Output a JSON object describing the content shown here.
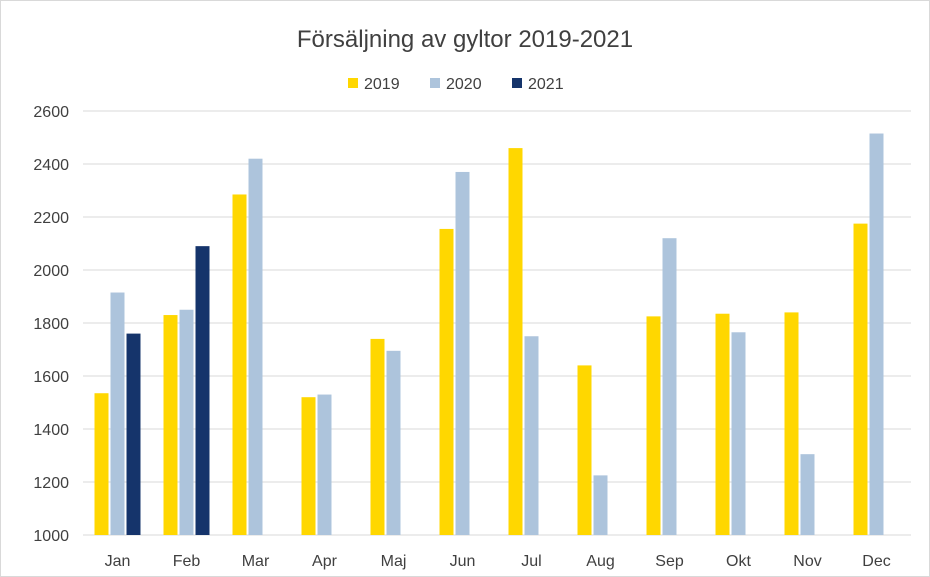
{
  "chart_data": {
    "type": "bar",
    "title": "Försäljning av gyltor 2019-2021",
    "xlabel": "",
    "ylabel": "",
    "ylim": [
      1000,
      2600
    ],
    "yticks": [
      1000,
      1200,
      1400,
      1600,
      1800,
      2000,
      2200,
      2400,
      2600
    ],
    "grid": true,
    "legend_position": "top",
    "categories": [
      "Jan",
      "Feb",
      "Mar",
      "Apr",
      "Maj",
      "Jun",
      "Jul",
      "Aug",
      "Sep",
      "Okt",
      "Nov",
      "Dec"
    ],
    "series": [
      {
        "name": "2019",
        "color": "#FFD700",
        "values": [
          1535,
          1830,
          2285,
          1520,
          1740,
          2155,
          2460,
          1640,
          1825,
          1835,
          1840,
          2175
        ]
      },
      {
        "name": "2020",
        "color": "#ADC4DC",
        "values": [
          1915,
          1850,
          2420,
          1530,
          1695,
          2370,
          1750,
          1225,
          2120,
          1765,
          1305,
          2515
        ]
      },
      {
        "name": "2021",
        "color": "#15346B",
        "values": [
          1760,
          2090,
          null,
          null,
          null,
          null,
          null,
          null,
          null,
          null,
          null,
          null
        ]
      }
    ]
  }
}
